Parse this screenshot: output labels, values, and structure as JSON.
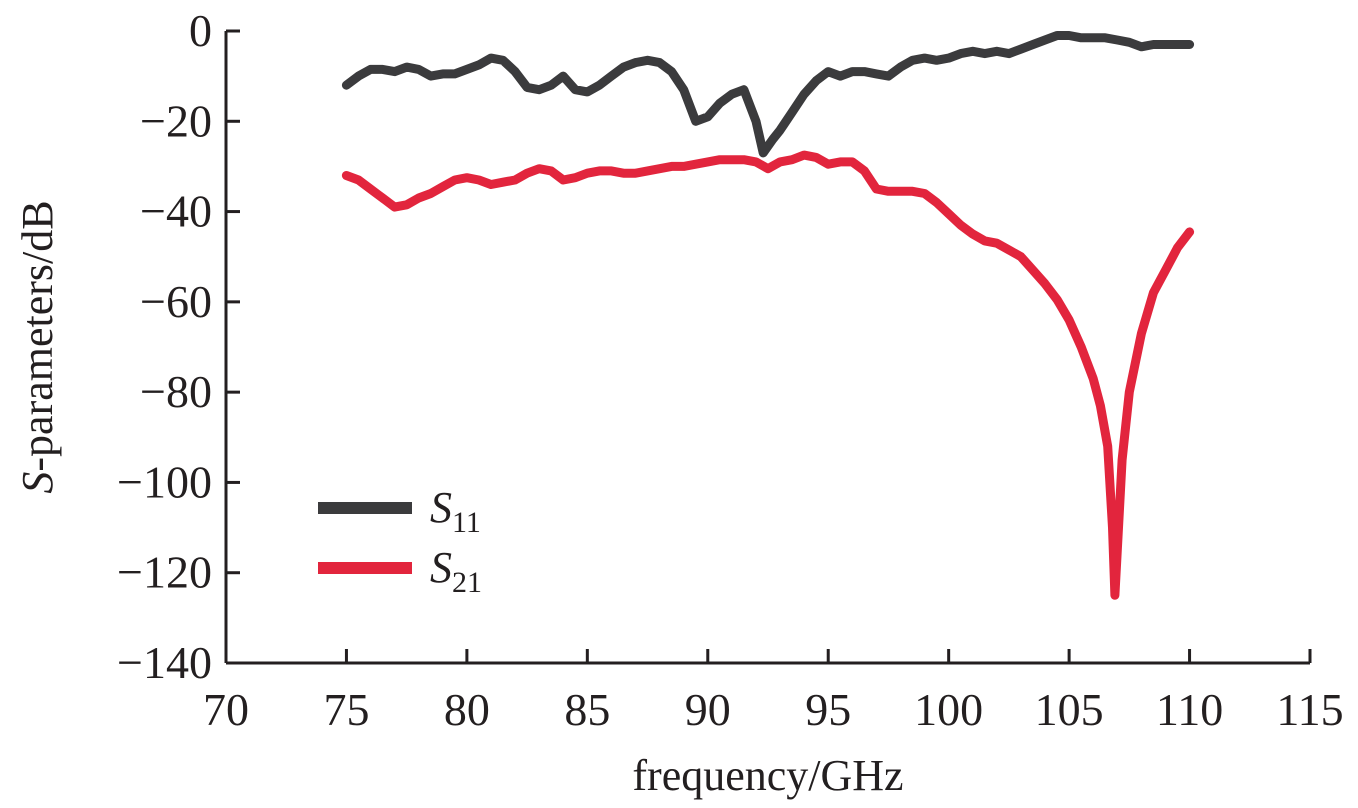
{
  "chart_data": {
    "type": "line",
    "xlabel": "frequency/GHz",
    "ylabel_italic": "S",
    "ylabel_rest": "-parameters/dB",
    "xlim": [
      70,
      115
    ],
    "ylim": [
      -140,
      0
    ],
    "xticks": [
      70,
      75,
      80,
      85,
      90,
      95,
      100,
      105,
      110,
      115
    ],
    "yticks": [
      0,
      -20,
      -40,
      -60,
      -80,
      -100,
      -120,
      -140
    ],
    "xtick_labels": [
      "70",
      "75",
      "80",
      "85",
      "90",
      "95",
      "100",
      "105",
      "110",
      "115"
    ],
    "ytick_labels": [
      "0",
      "−20",
      "−40",
      "−60",
      "−80",
      "−100",
      "−120",
      "−140"
    ],
    "grid": false,
    "legend_position": "lower-left",
    "series": [
      {
        "name_main": "S",
        "name_sub": "11",
        "color": "#3b3b3d",
        "points": [
          [
            75,
            -12
          ],
          [
            75.5,
            -10
          ],
          [
            76,
            -8.5
          ],
          [
            76.5,
            -8.5
          ],
          [
            77,
            -9
          ],
          [
            77.5,
            -8
          ],
          [
            78,
            -8.5
          ],
          [
            78.5,
            -10
          ],
          [
            79,
            -9.5
          ],
          [
            79.5,
            -9.5
          ],
          [
            80,
            -8.5
          ],
          [
            80.5,
            -7.5
          ],
          [
            81,
            -6
          ],
          [
            81.5,
            -6.5
          ],
          [
            82,
            -9
          ],
          [
            82.5,
            -12.5
          ],
          [
            83,
            -13
          ],
          [
            83.5,
            -12
          ],
          [
            84,
            -10
          ],
          [
            84.5,
            -13
          ],
          [
            85,
            -13.5
          ],
          [
            85.5,
            -12
          ],
          [
            86,
            -10
          ],
          [
            86.5,
            -8
          ],
          [
            87,
            -7
          ],
          [
            87.5,
            -6.5
          ],
          [
            88,
            -7
          ],
          [
            88.5,
            -9
          ],
          [
            89,
            -13
          ],
          [
            89.5,
            -20
          ],
          [
            90,
            -19
          ],
          [
            90.5,
            -16
          ],
          [
            91,
            -14
          ],
          [
            91.5,
            -13
          ],
          [
            92,
            -20
          ],
          [
            92.3,
            -27
          ],
          [
            92.7,
            -24
          ],
          [
            93,
            -22
          ],
          [
            93.5,
            -18
          ],
          [
            94,
            -14
          ],
          [
            94.5,
            -11
          ],
          [
            95,
            -9
          ],
          [
            95.5,
            -10
          ],
          [
            96,
            -9
          ],
          [
            96.5,
            -9
          ],
          [
            97,
            -9.5
          ],
          [
            97.5,
            -10
          ],
          [
            98,
            -8
          ],
          [
            98.5,
            -6.5
          ],
          [
            99,
            -6
          ],
          [
            99.5,
            -6.5
          ],
          [
            100,
            -6
          ],
          [
            100.5,
            -5
          ],
          [
            101,
            -4.5
          ],
          [
            101.5,
            -5
          ],
          [
            102,
            -4.5
          ],
          [
            102.5,
            -5
          ],
          [
            103,
            -4
          ],
          [
            103.5,
            -3
          ],
          [
            104,
            -2
          ],
          [
            104.5,
            -1
          ],
          [
            105,
            -1
          ],
          [
            105.5,
            -1.5
          ],
          [
            106,
            -1.5
          ],
          [
            106.5,
            -1.5
          ],
          [
            107,
            -2
          ],
          [
            107.5,
            -2.5
          ],
          [
            108,
            -3.5
          ],
          [
            108.5,
            -3
          ],
          [
            109,
            -3
          ],
          [
            109.5,
            -3
          ],
          [
            110,
            -3
          ]
        ]
      },
      {
        "name_main": "S",
        "name_sub": "21",
        "color": "#e2253d",
        "points": [
          [
            75,
            -32
          ],
          [
            75.5,
            -33
          ],
          [
            76,
            -35
          ],
          [
            76.5,
            -37
          ],
          [
            77,
            -39
          ],
          [
            77.5,
            -38.5
          ],
          [
            78,
            -37
          ],
          [
            78.5,
            -36
          ],
          [
            79,
            -34.5
          ],
          [
            79.5,
            -33
          ],
          [
            80,
            -32.5
          ],
          [
            80.5,
            -33
          ],
          [
            81,
            -34
          ],
          [
            81.5,
            -33.5
          ],
          [
            82,
            -33
          ],
          [
            82.5,
            -31.5
          ],
          [
            83,
            -30.5
          ],
          [
            83.5,
            -31
          ],
          [
            84,
            -33
          ],
          [
            84.5,
            -32.5
          ],
          [
            85,
            -31.5
          ],
          [
            85.5,
            -31
          ],
          [
            86,
            -31
          ],
          [
            86.5,
            -31.5
          ],
          [
            87,
            -31.5
          ],
          [
            87.5,
            -31
          ],
          [
            88,
            -30.5
          ],
          [
            88.5,
            -30
          ],
          [
            89,
            -30
          ],
          [
            89.5,
            -29.5
          ],
          [
            90,
            -29
          ],
          [
            90.5,
            -28.5
          ],
          [
            91,
            -28.5
          ],
          [
            91.5,
            -28.5
          ],
          [
            92,
            -29
          ],
          [
            92.5,
            -30.5
          ],
          [
            93,
            -29
          ],
          [
            93.5,
            -28.5
          ],
          [
            94,
            -27.5
          ],
          [
            94.5,
            -28
          ],
          [
            95,
            -29.5
          ],
          [
            95.5,
            -29
          ],
          [
            96,
            -29
          ],
          [
            96.5,
            -31
          ],
          [
            97,
            -35
          ],
          [
            97.5,
            -35.5
          ],
          [
            98,
            -35.5
          ],
          [
            98.5,
            -35.5
          ],
          [
            99,
            -36
          ],
          [
            99.5,
            -38
          ],
          [
            100,
            -40.5
          ],
          [
            100.5,
            -43
          ],
          [
            101,
            -45
          ],
          [
            101.5,
            -46.5
          ],
          [
            102,
            -47
          ],
          [
            102.5,
            -48.5
          ],
          [
            103,
            -50
          ],
          [
            103.5,
            -53
          ],
          [
            104,
            -56
          ],
          [
            104.5,
            -59.5
          ],
          [
            105,
            -64
          ],
          [
            105.5,
            -70
          ],
          [
            106,
            -77
          ],
          [
            106.3,
            -83
          ],
          [
            106.6,
            -92
          ],
          [
            106.8,
            -110
          ],
          [
            106.9,
            -125
          ],
          [
            107,
            -115
          ],
          [
            107.2,
            -95
          ],
          [
            107.5,
            -80
          ],
          [
            108,
            -67
          ],
          [
            108.5,
            -58
          ],
          [
            109,
            -53
          ],
          [
            109.5,
            -48
          ],
          [
            110,
            -44.5
          ]
        ]
      }
    ]
  }
}
